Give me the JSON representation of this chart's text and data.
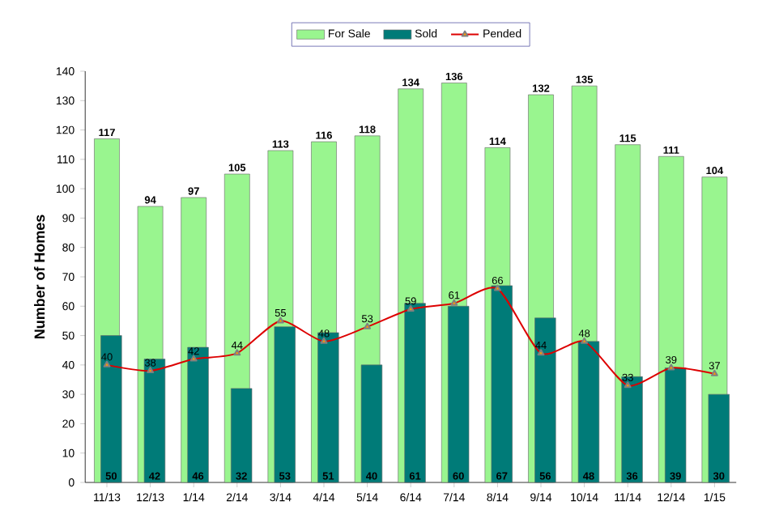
{
  "chart_data": {
    "type": "bar",
    "ylabel": "Number of Homes",
    "categories": [
      "11/13",
      "12/13",
      "1/14",
      "2/14",
      "3/14",
      "4/14",
      "5/14",
      "6/14",
      "7/14",
      "8/14",
      "9/14",
      "10/14",
      "11/14",
      "12/14",
      "1/15"
    ],
    "series": [
      {
        "name": "For Sale",
        "color": "#99f58f",
        "values": [
          117,
          94,
          97,
          105,
          113,
          116,
          118,
          134,
          136,
          114,
          132,
          135,
          115,
          111,
          104
        ]
      },
      {
        "name": "Sold",
        "color": "#007b78",
        "values": [
          50,
          42,
          46,
          32,
          53,
          51,
          40,
          61,
          60,
          67,
          56,
          48,
          36,
          39,
          30
        ]
      },
      {
        "name": "Pended",
        "type": "line",
        "color": "#dd0000",
        "marker": "triangle",
        "line_style": "solid",
        "values": [
          40,
          38,
          42,
          44,
          55,
          48,
          53,
          59,
          61,
          66,
          44,
          48,
          33,
          39,
          37
        ]
      }
    ],
    "ylim": [
      0,
      140
    ],
    "yticks": [
      0,
      10,
      20,
      30,
      40,
      50,
      60,
      70,
      80,
      90,
      100,
      110,
      120,
      130,
      140
    ],
    "grid": false,
    "legend": "top",
    "data_labels": true
  }
}
